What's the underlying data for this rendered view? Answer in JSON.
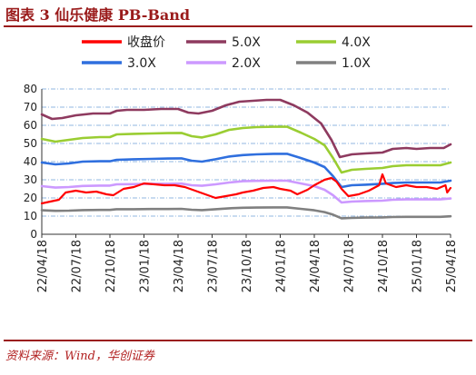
{
  "figure": {
    "title": "图表 3   仙乐健康 PB-Band",
    "source": "资料来源：Wind，华创证券"
  },
  "chart_data": {
    "type": "line",
    "title": "",
    "xlabel": "",
    "ylabel": "",
    "ylim": [
      0,
      80
    ],
    "yticks": [
      "0",
      "10",
      "20",
      "30",
      "40",
      "50",
      "60",
      "70",
      "80"
    ],
    "xticks": [
      "22/04/18",
      "22/07/18",
      "22/10/18",
      "23/01/18",
      "23/04/18",
      "23/07/18",
      "23/10/18",
      "24/01/18",
      "24/04/18",
      "24/07/18",
      "24/10/18",
      "25/01/18",
      "25/04/18"
    ],
    "grid": "horizontal-dashed",
    "legend_position": "top",
    "series": [
      {
        "name": "收盘价",
        "color": "#ff0000",
        "points": [
          [
            0,
            17
          ],
          [
            0.25,
            18
          ],
          [
            0.5,
            19
          ],
          [
            0.7,
            23
          ],
          [
            1.0,
            24
          ],
          [
            1.3,
            23
          ],
          [
            1.6,
            23.5
          ],
          [
            1.9,
            22
          ],
          [
            2.1,
            21.5
          ],
          [
            2.4,
            25
          ],
          [
            2.7,
            26
          ],
          [
            3.0,
            28
          ],
          [
            3.3,
            27.5
          ],
          [
            3.6,
            27
          ],
          [
            3.9,
            27
          ],
          [
            4.2,
            26
          ],
          [
            4.5,
            24
          ],
          [
            4.8,
            22
          ],
          [
            5.1,
            20
          ],
          [
            5.4,
            21
          ],
          [
            5.7,
            22
          ],
          [
            5.9,
            23
          ],
          [
            6.2,
            24
          ],
          [
            6.5,
            25.5
          ],
          [
            6.8,
            26
          ],
          [
            7.0,
            25
          ],
          [
            7.3,
            24
          ],
          [
            7.5,
            22
          ],
          [
            7.8,
            24.5
          ],
          [
            8.0,
            27
          ],
          [
            8.3,
            30
          ],
          [
            8.5,
            31
          ],
          [
            8.65,
            29
          ],
          [
            8.8,
            25
          ],
          [
            9.0,
            21
          ],
          [
            9.3,
            22
          ],
          [
            9.6,
            24
          ],
          [
            9.9,
            27
          ],
          [
            10.0,
            33
          ],
          [
            10.1,
            28
          ],
          [
            10.4,
            26
          ],
          [
            10.7,
            27
          ],
          [
            11.0,
            26
          ],
          [
            11.3,
            26
          ],
          [
            11.6,
            25
          ],
          [
            11.85,
            27
          ],
          [
            11.9,
            23
          ],
          [
            12.0,
            25.5
          ]
        ]
      },
      {
        "name": "5.0X",
        "color": "#8e3a5f",
        "points": [
          [
            0,
            66
          ],
          [
            0.3,
            63.5
          ],
          [
            0.6,
            64
          ],
          [
            1.0,
            65.5
          ],
          [
            1.5,
            66.5
          ],
          [
            2.0,
            66.5
          ],
          [
            2.2,
            68
          ],
          [
            2.5,
            68.5
          ],
          [
            3.0,
            68.5
          ],
          [
            3.5,
            69
          ],
          [
            4.0,
            69
          ],
          [
            4.3,
            67
          ],
          [
            4.6,
            66.5
          ],
          [
            5.0,
            68
          ],
          [
            5.4,
            71
          ],
          [
            5.8,
            73
          ],
          [
            6.2,
            73.5
          ],
          [
            6.6,
            74
          ],
          [
            7.0,
            74
          ],
          [
            7.4,
            71
          ],
          [
            7.8,
            67
          ],
          [
            8.2,
            61
          ],
          [
            8.5,
            52
          ],
          [
            8.75,
            42.5
          ],
          [
            9.1,
            44
          ],
          [
            9.5,
            44.5
          ],
          [
            10.0,
            45
          ],
          [
            10.3,
            47
          ],
          [
            10.7,
            47.5
          ],
          [
            11.0,
            47
          ],
          [
            11.4,
            47.5
          ],
          [
            11.8,
            47.5
          ],
          [
            12.0,
            49.5
          ]
        ]
      },
      {
        "name": "4.0X",
        "color": "#9acd32",
        "points": [
          [
            0,
            52.5
          ],
          [
            0.4,
            51
          ],
          [
            0.8,
            52
          ],
          [
            1.2,
            53
          ],
          [
            1.7,
            53.5
          ],
          [
            2.0,
            53.5
          ],
          [
            2.2,
            55
          ],
          [
            2.7,
            55.3
          ],
          [
            3.2,
            55.5
          ],
          [
            3.7,
            55.7
          ],
          [
            4.1,
            55.8
          ],
          [
            4.4,
            54
          ],
          [
            4.7,
            53.3
          ],
          [
            5.1,
            55
          ],
          [
            5.5,
            57.5
          ],
          [
            5.9,
            58.5
          ],
          [
            6.3,
            59
          ],
          [
            6.8,
            59.2
          ],
          [
            7.2,
            59.2
          ],
          [
            7.6,
            56
          ],
          [
            8.0,
            52.5
          ],
          [
            8.3,
            49
          ],
          [
            8.55,
            42
          ],
          [
            8.8,
            34
          ],
          [
            9.1,
            35.5
          ],
          [
            9.5,
            36
          ],
          [
            10.0,
            36.5
          ],
          [
            10.3,
            37.5
          ],
          [
            10.7,
            38
          ],
          [
            11.2,
            38
          ],
          [
            11.7,
            38
          ],
          [
            12.0,
            39.5
          ]
        ]
      },
      {
        "name": "3.0X",
        "color": "#2f6fde",
        "points": [
          [
            0,
            39.5
          ],
          [
            0.4,
            38.5
          ],
          [
            0.8,
            39
          ],
          [
            1.2,
            40
          ],
          [
            1.7,
            40.2
          ],
          [
            2.0,
            40.2
          ],
          [
            2.2,
            41
          ],
          [
            2.7,
            41.3
          ],
          [
            3.2,
            41.5
          ],
          [
            3.7,
            41.7
          ],
          [
            4.1,
            41.8
          ],
          [
            4.4,
            40.5
          ],
          [
            4.7,
            40
          ],
          [
            5.1,
            41.3
          ],
          [
            5.5,
            42.8
          ],
          [
            5.9,
            43.6
          ],
          [
            6.3,
            44
          ],
          [
            6.8,
            44.3
          ],
          [
            7.2,
            44.3
          ],
          [
            7.6,
            42
          ],
          [
            8.0,
            39.5
          ],
          [
            8.3,
            37
          ],
          [
            8.55,
            32
          ],
          [
            8.8,
            26
          ],
          [
            9.1,
            27
          ],
          [
            9.5,
            27.3
          ],
          [
            10.0,
            27.8
          ],
          [
            10.3,
            28.2
          ],
          [
            10.7,
            28.5
          ],
          [
            11.2,
            28.5
          ],
          [
            11.7,
            28.5
          ],
          [
            12.0,
            29.5
          ]
        ]
      },
      {
        "name": "2.0X",
        "color": "#cc99ff",
        "points": [
          [
            0,
            26.5
          ],
          [
            0.4,
            25.7
          ],
          [
            0.8,
            26
          ],
          [
            1.2,
            26.6
          ],
          [
            1.7,
            26.8
          ],
          [
            2.0,
            26.8
          ],
          [
            2.2,
            27.5
          ],
          [
            2.7,
            27.6
          ],
          [
            3.2,
            27.8
          ],
          [
            3.7,
            27.8
          ],
          [
            4.1,
            27.9
          ],
          [
            4.4,
            27
          ],
          [
            4.7,
            26.7
          ],
          [
            5.1,
            27.5
          ],
          [
            5.5,
            28.5
          ],
          [
            5.9,
            29.2
          ],
          [
            6.3,
            29.4
          ],
          [
            6.8,
            29.5
          ],
          [
            7.2,
            29.5
          ],
          [
            7.6,
            28
          ],
          [
            8.0,
            26.5
          ],
          [
            8.3,
            24.5
          ],
          [
            8.55,
            21.5
          ],
          [
            8.8,
            17.5
          ],
          [
            9.1,
            18
          ],
          [
            9.5,
            18.3
          ],
          [
            10.0,
            18.5
          ],
          [
            10.3,
            19
          ],
          [
            10.7,
            19.2
          ],
          [
            11.2,
            19.2
          ],
          [
            11.7,
            19.2
          ],
          [
            12.0,
            19.7
          ]
        ]
      },
      {
        "name": "1.0X",
        "color": "#808080",
        "points": [
          [
            0,
            13.2
          ],
          [
            0.4,
            12.9
          ],
          [
            0.8,
            13
          ],
          [
            1.2,
            13.3
          ],
          [
            1.7,
            13.4
          ],
          [
            2.0,
            13.4
          ],
          [
            2.2,
            13.8
          ],
          [
            2.7,
            13.8
          ],
          [
            3.2,
            13.9
          ],
          [
            3.7,
            13.9
          ],
          [
            4.1,
            14
          ],
          [
            4.4,
            13.5
          ],
          [
            4.7,
            13.3
          ],
          [
            5.1,
            13.8
          ],
          [
            5.5,
            14.3
          ],
          [
            5.9,
            14.6
          ],
          [
            6.3,
            14.7
          ],
          [
            6.8,
            14.8
          ],
          [
            7.2,
            14.8
          ],
          [
            7.6,
            14
          ],
          [
            8.0,
            13.2
          ],
          [
            8.3,
            12.2
          ],
          [
            8.55,
            10.8
          ],
          [
            8.8,
            8.8
          ],
          [
            9.1,
            9
          ],
          [
            9.5,
            9.2
          ],
          [
            10.0,
            9.3
          ],
          [
            10.3,
            9.5
          ],
          [
            10.7,
            9.6
          ],
          [
            11.2,
            9.6
          ],
          [
            11.7,
            9.6
          ],
          [
            12.0,
            9.9
          ]
        ]
      }
    ]
  }
}
